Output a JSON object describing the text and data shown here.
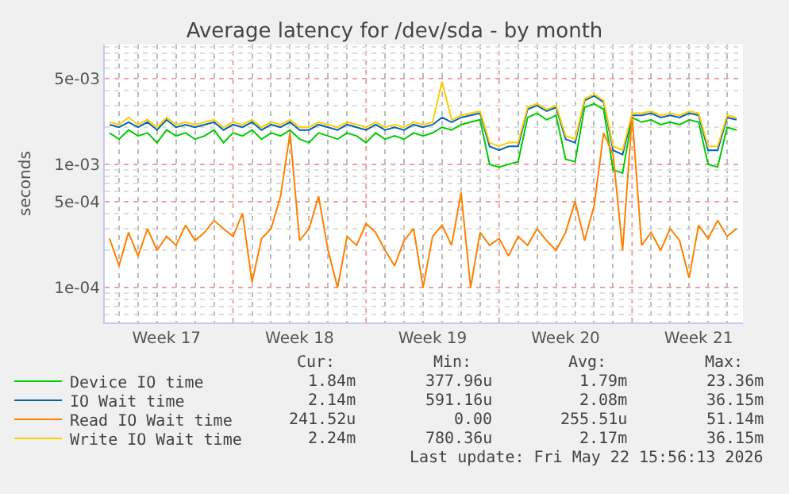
{
  "chart_data": {
    "type": "line",
    "title": "Average latency for /dev/sda - by month",
    "ylabel": "seconds",
    "x": [
      "2026-04-20T12:00",
      "2026-04-21T00:00",
      "2026-04-21T12:00",
      "2026-04-22T00:00",
      "2026-04-22T12:00",
      "2026-04-23T00:00",
      "2026-04-23T12:00",
      "2026-04-24T00:00",
      "2026-04-24T12:00",
      "2026-04-25T00:00",
      "2026-04-25T12:00",
      "2026-04-26T00:00",
      "2026-04-26T12:00",
      "2026-04-27T00:00",
      "2026-04-27T12:00",
      "2026-04-28T00:00",
      "2026-04-28T12:00",
      "2026-04-29T00:00",
      "2026-04-29T12:00",
      "2026-04-30T00:00",
      "2026-04-30T12:00",
      "2026-05-01T00:00",
      "2026-05-01T12:00",
      "2026-05-02T00:00",
      "2026-05-02T12:00",
      "2026-05-03T00:00",
      "2026-05-03T12:00",
      "2026-05-04T00:00",
      "2026-05-04T12:00",
      "2026-05-05T00:00",
      "2026-05-05T12:00",
      "2026-05-06T00:00",
      "2026-05-06T12:00",
      "2026-05-07T00:00",
      "2026-05-07T12:00",
      "2026-05-08T00:00",
      "2026-05-08T12:00",
      "2026-05-09T00:00",
      "2026-05-09T12:00",
      "2026-05-10T00:00",
      "2026-05-10T12:00",
      "2026-05-11T00:00",
      "2026-05-11T12:00",
      "2026-05-12T00:00",
      "2026-05-12T12:00",
      "2026-05-13T00:00",
      "2026-05-13T12:00",
      "2026-05-14T00:00",
      "2026-05-14T12:00",
      "2026-05-15T00:00",
      "2026-05-15T12:00",
      "2026-05-16T00:00",
      "2026-05-16T12:00",
      "2026-05-17T00:00",
      "2026-05-17T12:00",
      "2026-05-18T00:00",
      "2026-05-18T12:00",
      "2026-05-19T00:00",
      "2026-05-19T12:00",
      "2026-05-20T00:00",
      "2026-05-20T12:00",
      "2026-05-21T00:00",
      "2026-05-21T12:00",
      "2026-05-22T00:00",
      "2026-05-22T12:00",
      "2026-05-23T00:00",
      "2026-05-23T12:00"
    ],
    "series": [
      {
        "name": "Device IO time",
        "color": "#00cc00",
        "values": [
          0.0018,
          0.0016,
          0.0019,
          0.0017,
          0.0018,
          0.0015,
          0.0019,
          0.0017,
          0.0018,
          0.0016,
          0.0017,
          0.0019,
          0.0015,
          0.0018,
          0.0017,
          0.0019,
          0.0016,
          0.0018,
          0.0017,
          0.0019,
          0.0016,
          0.0015,
          0.0018,
          0.0017,
          0.0016,
          0.0018,
          0.0017,
          0.0015,
          0.0018,
          0.0016,
          0.0017,
          0.0016,
          0.0018,
          0.0017,
          0.0018,
          0.002,
          0.0019,
          0.0021,
          0.0022,
          0.0023,
          0.001,
          0.00095,
          0.001,
          0.00105,
          0.0024,
          0.0026,
          0.0023,
          0.0025,
          0.0011,
          0.00105,
          0.0029,
          0.0031,
          0.0028,
          0.0009,
          0.00085,
          0.0024,
          0.0022,
          0.0023,
          0.0021,
          0.0022,
          0.0021,
          0.0023,
          0.0022,
          0.001,
          0.00095,
          0.002,
          0.0019
        ]
      },
      {
        "name": "IO Wait time",
        "color": "#0066b3",
        "values": [
          0.0021,
          0.002,
          0.0022,
          0.002,
          0.0022,
          0.0019,
          0.0023,
          0.002,
          0.0021,
          0.002,
          0.0021,
          0.0022,
          0.0019,
          0.0021,
          0.002,
          0.0022,
          0.0019,
          0.0021,
          0.002,
          0.0022,
          0.0019,
          0.0019,
          0.0021,
          0.002,
          0.0019,
          0.0021,
          0.002,
          0.0019,
          0.0021,
          0.0019,
          0.002,
          0.0019,
          0.0021,
          0.002,
          0.0021,
          0.0024,
          0.0022,
          0.0024,
          0.0025,
          0.0026,
          0.0014,
          0.0013,
          0.0014,
          0.0014,
          0.0028,
          0.003,
          0.0027,
          0.0029,
          0.0016,
          0.0015,
          0.0033,
          0.0036,
          0.0032,
          0.0013,
          0.0012,
          0.0025,
          0.0025,
          0.0026,
          0.0024,
          0.0025,
          0.0024,
          0.0026,
          0.0025,
          0.0013,
          0.0013,
          0.0024,
          0.0023
        ]
      },
      {
        "name": "Read IO Wait time",
        "color": "#ff8000",
        "values": [
          0.00025,
          0.00015,
          0.00028,
          0.00018,
          0.0003,
          0.0002,
          0.00026,
          0.00022,
          0.00032,
          0.00024,
          0.00028,
          0.00035,
          0.0003,
          0.00026,
          0.0004,
          0.00011,
          0.00025,
          0.0003,
          0.00055,
          0.0018,
          0.00024,
          0.0003,
          0.00055,
          0.0002,
          0.0001,
          0.00026,
          0.00022,
          0.00033,
          0.00028,
          0.0002,
          0.00015,
          0.00024,
          0.0003,
          0.0001,
          0.00026,
          0.00032,
          0.00022,
          0.00059,
          0.0001,
          0.00028,
          0.00022,
          0.00025,
          0.00018,
          0.00026,
          0.00022,
          0.0003,
          0.00024,
          0.0002,
          0.00028,
          0.0005,
          0.00024,
          0.00046,
          0.0018,
          0.0012,
          0.0002,
          0.0025,
          0.00022,
          0.00028,
          0.0002,
          0.0003,
          0.00024,
          0.00012,
          0.00032,
          0.00025,
          0.00035,
          0.00026,
          0.0003
        ]
      },
      {
        "name": "Write IO Wait time",
        "color": "#ffcc00",
        "values": [
          0.0022,
          0.0021,
          0.0024,
          0.0021,
          0.0023,
          0.002,
          0.0024,
          0.0021,
          0.0022,
          0.0021,
          0.0022,
          0.0023,
          0.002,
          0.0022,
          0.0021,
          0.0023,
          0.002,
          0.0022,
          0.0021,
          0.0023,
          0.002,
          0.002,
          0.0022,
          0.0021,
          0.002,
          0.0022,
          0.0021,
          0.002,
          0.0022,
          0.002,
          0.0021,
          0.002,
          0.0022,
          0.0021,
          0.0022,
          0.0047,
          0.0023,
          0.0025,
          0.0026,
          0.0027,
          0.0015,
          0.0014,
          0.0015,
          0.0015,
          0.0029,
          0.0031,
          0.0028,
          0.003,
          0.0017,
          0.0016,
          0.0034,
          0.0037,
          0.0033,
          0.0014,
          0.0013,
          0.0026,
          0.0026,
          0.0027,
          0.0025,
          0.0026,
          0.0025,
          0.0027,
          0.0026,
          0.0014,
          0.0014,
          0.0025,
          0.0024
        ]
      }
    ],
    "log": "y",
    "ylim": [
      5.2e-05,
      0.0094
    ],
    "yticks": [
      {
        "value": 0.0001,
        "label": "1e-04"
      },
      {
        "value": 0.0005,
        "label": "5e-04"
      },
      {
        "value": 0.001,
        "label": "1e-03"
      },
      {
        "value": 0.005,
        "label": "5e-03"
      }
    ],
    "xlim": [
      "2026-04-20T06:00",
      "2026-05-23T20:00"
    ],
    "xticks": [
      {
        "value": "2026-04-23T12:00",
        "label": "Week 17"
      },
      {
        "value": "2026-04-30T12:00",
        "label": "Week 18"
      },
      {
        "value": "2026-05-07T12:00",
        "label": "Week 19"
      },
      {
        "value": "2026-05-14T12:00",
        "label": "Week 20"
      },
      {
        "value": "2026-05-21T12:00",
        "label": "Week 21"
      }
    ],
    "grid": true,
    "legend": "bottom",
    "marker": "none",
    "line_style": "solid",
    "annotations": [
      "Cur:",
      "Min:",
      "Avg:",
      "Max:",
      "1.84m",
      "377.96u",
      "1.79m",
      "23.36m",
      "2.14m",
      "591.16u",
      "2.08m",
      "36.15m",
      "241.52u",
      "0.00",
      "255.51u",
      "51.14m",
      "2.24m",
      "780.36u",
      "2.17m",
      "36.15m",
      "Last update: Fri May 22 15:56:13 2026"
    ]
  }
}
